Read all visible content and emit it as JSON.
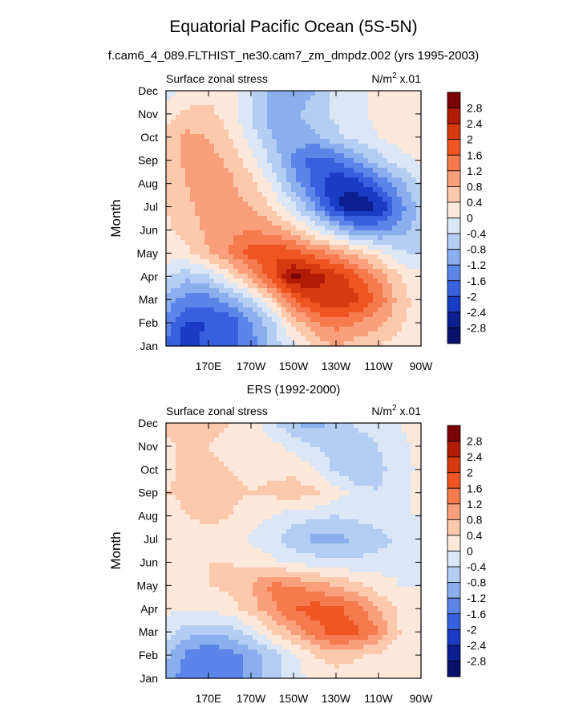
{
  "figure": {
    "title": "Equatorial Pacific Ocean (5S-5N)",
    "subtitle": "f.cam6_4_089.FLTHIST_ne30.cam7_zm_dmpdz.002 (yrs 1995-2003)"
  },
  "colorbar": {
    "labels": [
      "2.8",
      "2.4",
      "2",
      "1.6",
      "1.2",
      "0.8",
      "0.4",
      "0",
      "-0.4",
      "-0.8",
      "-1.2",
      "-1.6",
      "-2",
      "-2.4",
      "-2.8"
    ],
    "colors": [
      "#7a0403",
      "#b11a05",
      "#d63a10",
      "#ee5522",
      "#f57a4d",
      "#f99f7b",
      "#fcc9ad",
      "#fde8da",
      "#dbe6f7",
      "#b4cdf2",
      "#8aaeee",
      "#5b85e8",
      "#3760df",
      "#1a3cc5",
      "#0b1f90",
      "#07126a"
    ]
  },
  "chart_data": [
    {
      "type": "heatmap",
      "panel_title": "",
      "left_label": "Surface zonal stress",
      "right_label": "N/m² x.01",
      "units_prefix": "N/m",
      "units_sup": "2",
      "units_suffix": " x.01",
      "ylabel": "Month",
      "y_ticks": [
        "Jan",
        "Feb",
        "Mar",
        "Apr",
        "May",
        "Jun",
        "Jul",
        "Aug",
        "Sep",
        "Oct",
        "Nov",
        "Dec"
      ],
      "x_ticks": [
        "170E",
        "170W",
        "150W",
        "130W",
        "110W",
        "90W"
      ],
      "x_tick_values": [
        170,
        190,
        210,
        230,
        250,
        270
      ],
      "x_range": [
        150,
        270
      ],
      "y_range": [
        1,
        12
      ],
      "columns_lon": [
        150,
        160,
        170,
        180,
        190,
        200,
        210,
        220,
        230,
        240,
        250,
        260,
        270
      ],
      "rows": [
        [
          -1.6,
          -2.3,
          -1.8,
          -1.7,
          -1.4,
          -0.6,
          -0.2,
          0.5,
          0.8,
          0.6,
          0.4,
          0.2,
          0.0
        ],
        [
          -1.4,
          -2.1,
          -2.0,
          -1.9,
          -1.3,
          -0.5,
          0.5,
          1.2,
          1.4,
          1.2,
          0.9,
          0.5,
          0.1
        ],
        [
          -0.9,
          -1.4,
          -1.4,
          -1.0,
          -0.4,
          0.5,
          1.6,
          2.2,
          2.4,
          2.1,
          1.5,
          0.6,
          0.2
        ],
        [
          -0.3,
          -0.7,
          -0.4,
          0.2,
          1.0,
          1.9,
          2.9,
          2.6,
          2.2,
          1.7,
          1.1,
          0.4,
          0.1
        ],
        [
          0.2,
          0.3,
          0.8,
          1.2,
          1.8,
          2.0,
          1.8,
          1.4,
          1.1,
          0.6,
          0.2,
          -0.3,
          -0.5
        ],
        [
          0.3,
          0.6,
          0.9,
          1.1,
          1.2,
          1.0,
          0.6,
          0.0,
          -0.6,
          -1.2,
          -1.3,
          -1.0,
          -0.6
        ],
        [
          0.4,
          0.7,
          1.0,
          1.0,
          0.8,
          0.4,
          -0.3,
          -1.2,
          -2.3,
          -2.8,
          -2.4,
          -1.4,
          -0.6
        ],
        [
          0.5,
          0.8,
          1.1,
          0.9,
          0.5,
          -0.1,
          -1.0,
          -1.8,
          -2.4,
          -2.2,
          -1.6,
          -0.9,
          -0.4
        ],
        [
          0.6,
          0.9,
          1.0,
          0.7,
          0.2,
          -0.5,
          -1.3,
          -1.8,
          -1.6,
          -1.1,
          -0.6,
          -0.2,
          0.1
        ],
        [
          0.6,
          0.9,
          0.8,
          0.4,
          -0.2,
          -0.8,
          -1.0,
          -0.9,
          -0.5,
          -0.3,
          0.0,
          0.2,
          0.3
        ],
        [
          0.2,
          0.5,
          0.5,
          0.2,
          -0.4,
          -1.0,
          -0.9,
          -0.6,
          -0.3,
          -0.1,
          0.1,
          0.3,
          0.4
        ],
        [
          -0.2,
          0.1,
          0.3,
          0.2,
          -0.3,
          -1.0,
          -1.1,
          -0.8,
          -0.3,
          -0.1,
          0.1,
          0.3,
          0.4
        ]
      ]
    },
    {
      "type": "heatmap",
      "panel_title": "ERS (1992-2000)",
      "left_label": "Surface zonal stress",
      "right_label": "N/m² x.01",
      "units_prefix": "N/m",
      "units_sup": "2",
      "units_suffix": " x.01",
      "ylabel": "Month",
      "y_ticks": [
        "Jan",
        "Feb",
        "Mar",
        "Apr",
        "May",
        "Jun",
        "Jul",
        "Aug",
        "Sep",
        "Oct",
        "Nov",
        "Dec"
      ],
      "x_ticks": [
        "170E",
        "170W",
        "150W",
        "130W",
        "110W",
        "90W"
      ],
      "x_tick_values": [
        170,
        190,
        210,
        230,
        250,
        270
      ],
      "x_range": [
        150,
        270
      ],
      "y_range": [
        1,
        12
      ],
      "columns_lon": [
        150,
        160,
        170,
        180,
        190,
        200,
        210,
        220,
        230,
        240,
        250,
        260,
        270
      ],
      "rows": [
        [
          -0.9,
          -1.5,
          -1.3,
          -1.5,
          -1.0,
          -0.5,
          -0.2,
          0.2,
          0.2,
          0.1,
          0.0,
          0.0,
          0.0
        ],
        [
          -0.7,
          -1.3,
          -1.6,
          -1.4,
          -1.1,
          -0.6,
          -0.1,
          0.4,
          0.6,
          0.5,
          0.3,
          0.1,
          0.0
        ],
        [
          -0.2,
          -0.6,
          -0.7,
          -0.6,
          -0.2,
          0.4,
          0.9,
          1.4,
          1.8,
          1.7,
          1.2,
          0.4,
          0.1
        ],
        [
          0.1,
          0.0,
          0.1,
          0.2,
          0.6,
          1.1,
          1.6,
          1.8,
          1.7,
          1.4,
          0.8,
          0.3,
          0.0
        ],
        [
          0.3,
          0.3,
          0.4,
          0.5,
          0.8,
          1.3,
          1.2,
          1.0,
          0.8,
          0.5,
          0.2,
          0.0,
          0.0
        ],
        [
          0.2,
          0.3,
          0.4,
          0.4,
          0.3,
          0.1,
          -0.1,
          -0.2,
          -0.3,
          -0.3,
          -0.2,
          -0.1,
          0.0
        ],
        [
          0.1,
          0.2,
          0.3,
          0.2,
          -0.1,
          -0.3,
          -0.7,
          -0.9,
          -0.9,
          -0.8,
          -0.6,
          -0.3,
          -0.1
        ],
        [
          0.2,
          0.4,
          0.5,
          0.4,
          0.2,
          0.0,
          -0.2,
          -0.3,
          -0.4,
          -0.3,
          -0.1,
          0.0,
          0.0
        ],
        [
          0.4,
          0.5,
          0.6,
          0.5,
          0.4,
          0.5,
          0.6,
          0.5,
          0.2,
          -0.2,
          -0.4,
          -0.1,
          0.1
        ],
        [
          0.3,
          0.5,
          0.5,
          0.4,
          0.3,
          0.3,
          0.3,
          0.0,
          -0.5,
          -0.8,
          -0.5,
          -0.2,
          0.1
        ],
        [
          0.3,
          0.5,
          0.4,
          0.3,
          0.2,
          0.1,
          -0.1,
          -0.4,
          -0.6,
          -0.7,
          -0.4,
          -0.1,
          0.1
        ],
        [
          0.5,
          0.6,
          0.5,
          0.4,
          0.2,
          -0.3,
          -0.8,
          -1.0,
          -0.6,
          -0.3,
          -0.1,
          0.0,
          0.2
        ]
      ]
    }
  ]
}
